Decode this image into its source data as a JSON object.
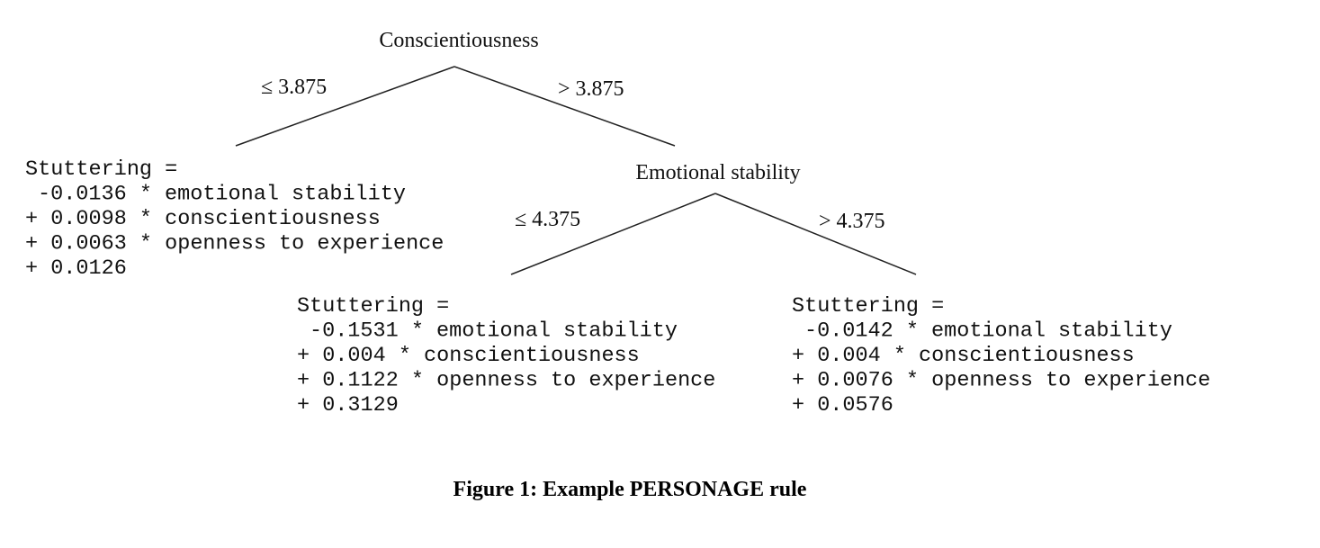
{
  "tree": {
    "root": {
      "label": "Conscientiousness",
      "left_edge": "≤ 3.875",
      "right_edge": "> 3.875"
    },
    "leaf_1": {
      "lines": [
        "Stuttering =",
        "-0.0136 * emotional stability",
        "+ 0.0098 * conscientiousness",
        "+ 0.0063 * openness to experience",
        "+ 0.0126"
      ]
    },
    "node_2": {
      "label": "Emotional stability",
      "left_edge": "≤ 4.375",
      "right_edge": "> 4.375"
    },
    "leaf_2": {
      "lines": [
        "Stuttering =",
        "-0.1531 * emotional stability",
        "+ 0.004 * conscientiousness",
        "+ 0.1122 * openness to experience",
        "+ 0.3129"
      ]
    },
    "leaf_3": {
      "lines": [
        "Stuttering =",
        "-0.0142 * emotional stability",
        "+ 0.004 * conscientiousness",
        "+ 0.0076 * openness to experience",
        "+ 0.0576"
      ]
    }
  },
  "caption": "Figure 1: Example PERSONAGE rule"
}
